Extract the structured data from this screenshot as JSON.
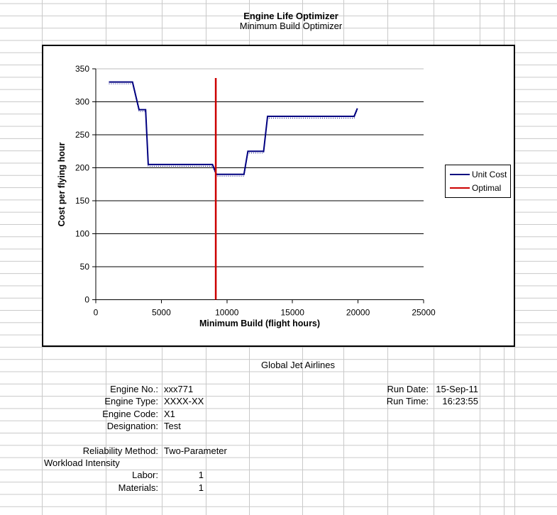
{
  "header": {
    "title": "Engine Life Optimizer",
    "subtitle": "Minimum Build Optimizer"
  },
  "chart_data": {
    "type": "line",
    "title": "",
    "xlabel": "Minimum Build (flight hours)",
    "ylabel": "Cost per flying hour",
    "xlim": [
      0,
      25000
    ],
    "ylim": [
      0,
      350
    ],
    "xticks": [
      0,
      5000,
      10000,
      15000,
      20000,
      25000
    ],
    "yticks": [
      0,
      50,
      100,
      150,
      200,
      250,
      300,
      350
    ],
    "grid": "horizontal",
    "legend": {
      "position": "right",
      "entries": [
        {
          "name": "Unit Cost",
          "color": "#000080"
        },
        {
          "name": "Optimal",
          "color": "#CC0000"
        }
      ]
    },
    "series": [
      {
        "name": "Unit Cost",
        "type": "step-line",
        "color": "#000080",
        "points": [
          [
            1000,
            330
          ],
          [
            2800,
            330
          ],
          [
            3300,
            288
          ],
          [
            3800,
            288
          ],
          [
            4000,
            205
          ],
          [
            8900,
            205
          ],
          [
            9200,
            190
          ],
          [
            11300,
            190
          ],
          [
            11600,
            225
          ],
          [
            12800,
            225
          ],
          [
            13100,
            278
          ],
          [
            19700,
            278
          ],
          [
            19950,
            290
          ]
        ]
      },
      {
        "name": "Optimal",
        "type": "vline",
        "color": "#CC0000",
        "x": 9150,
        "y_top": 336
      }
    ]
  },
  "info": {
    "company": "Global Jet Airlines",
    "left_fields": [
      {
        "label": "Engine No.:",
        "value": "xxx771"
      },
      {
        "label": "Engine Type:",
        "value": "XXXX-XX"
      },
      {
        "label": "Engine Code:",
        "value": "X1"
      },
      {
        "label": "Designation:",
        "value": "Test"
      }
    ],
    "right_fields": [
      {
        "label": "Run Date:",
        "value": "15-Sep-11"
      },
      {
        "label": "Run Time:",
        "value": "16:23:55"
      }
    ],
    "method_label": "Reliability Method:",
    "method_value": "Two-Parameter",
    "workload_header": "Workload Intensity",
    "workload_fields": [
      {
        "label": "Labor:",
        "value": "1"
      },
      {
        "label": "Materials:",
        "value": "1"
      }
    ]
  }
}
